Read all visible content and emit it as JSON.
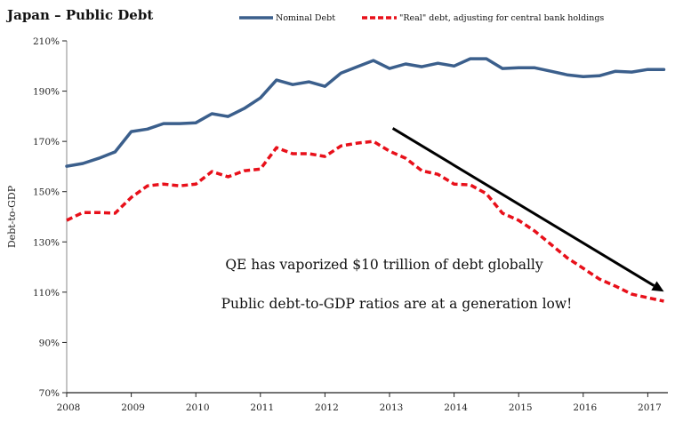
{
  "chart_data": {
    "type": "line",
    "title": "Japan – Public Debt",
    "xlabel": "",
    "ylabel": "Debt-to-GDP",
    "ylim": [
      70,
      210
    ],
    "xlim": [
      2008,
      2017.3
    ],
    "y_ticks": [
      70,
      90,
      110,
      130,
      150,
      170,
      190,
      210
    ],
    "y_tick_labels": [
      "70%",
      "90%",
      "110%",
      "130%",
      "150%",
      "170%",
      "190%",
      "210%"
    ],
    "x_ticks": [
      2008,
      2009,
      2010,
      2011,
      2012,
      2013,
      2014,
      2015,
      2016,
      2017
    ],
    "x_tick_labels": [
      "2008",
      "2009",
      "2010",
      "2011",
      "2012",
      "2013",
      "2014",
      "2015",
      "2016",
      "2017"
    ],
    "grid": false,
    "legend_position": "top",
    "x": [
      2008.0,
      2008.25,
      2008.5,
      2008.75,
      2009.0,
      2009.25,
      2009.5,
      2009.75,
      2010.0,
      2010.25,
      2010.5,
      2010.75,
      2011.0,
      2011.25,
      2011.5,
      2011.75,
      2012.0,
      2012.25,
      2012.5,
      2012.75,
      2013.0,
      2013.25,
      2013.5,
      2013.75,
      2014.0,
      2014.25,
      2014.5,
      2014.75,
      2015.0,
      2015.25,
      2015.5,
      2015.75,
      2016.0,
      2016.25,
      2016.5,
      2016.75,
      2017.0,
      2017.25
    ],
    "series": [
      {
        "name": "Nominal Debt",
        "color": "#3b5f8c",
        "style": "solid",
        "values": [
          160.1,
          161.2,
          163.3,
          165.8,
          173.9,
          174.9,
          177.1,
          177.1,
          177.4,
          181.0,
          179.9,
          183.1,
          187.3,
          194.4,
          192.6,
          193.7,
          191.9,
          197.2,
          199.7,
          202.2,
          199.0,
          200.8,
          199.7,
          201.1,
          200.0,
          202.9,
          202.9,
          199.0,
          199.3,
          199.3,
          197.9,
          196.5,
          195.8,
          196.1,
          197.9,
          197.6,
          198.6,
          198.6
        ]
      },
      {
        "name": "\"Real\" debt, adjusting for central bank holdings",
        "color": "#e8101a",
        "style": "dashed",
        "values": [
          138.6,
          141.7,
          141.7,
          141.4,
          147.7,
          152.3,
          153.0,
          152.3,
          153.0,
          158.0,
          155.9,
          158.3,
          159.0,
          167.5,
          165.1,
          165.1,
          164.0,
          168.2,
          169.3,
          170.0,
          166.1,
          163.3,
          158.3,
          156.9,
          153.0,
          152.7,
          149.2,
          141.4,
          138.6,
          134.3,
          129.0,
          123.7,
          119.5,
          115.2,
          112.4,
          109.2,
          107.8,
          106.4
        ]
      }
    ],
    "annotations": [
      {
        "text": "QE has vaporized $10 trillion of debt globally"
      },
      {
        "text": "Public debt-to-GDP ratios are at a generation low!"
      }
    ],
    "arrow": {
      "from": [
        2013.05,
        175.2
      ],
      "to": [
        2017.25,
        110.2
      ],
      "color": "#000000"
    }
  }
}
